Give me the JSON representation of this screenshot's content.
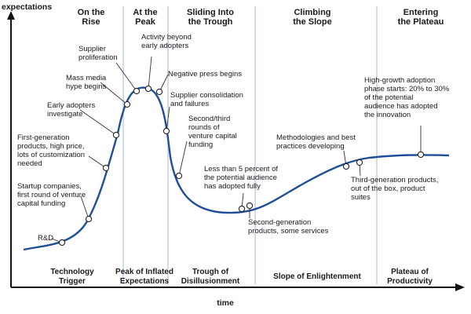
{
  "axes": {
    "y_label": "expectations",
    "x_label": "time"
  },
  "phases_top": [
    [
      "On the",
      "Rise"
    ],
    [
      "At the",
      "Peak"
    ],
    [
      "Sliding Into",
      "the Trough"
    ],
    [
      "Climbing",
      "the Slope"
    ],
    [
      "Entering",
      "the Plateau"
    ]
  ],
  "phases_bottom": [
    [
      "Technology",
      "Trigger"
    ],
    [
      "Peak of Inflated",
      "Expectations"
    ],
    [
      "Trough of",
      "Disillusionment"
    ],
    [
      "Slope of Enlightenment"
    ],
    [
      "Plateau of",
      "Productivity"
    ]
  ],
  "annotations": [
    [
      "R&D"
    ],
    [
      "Startup companies,",
      "first round of venture",
      "capital funding"
    ],
    [
      "First-generation",
      "products, high price,",
      "lots of customization",
      "needed"
    ],
    [
      "Early adopters",
      "investigate"
    ],
    [
      "Mass media",
      "hype begins"
    ],
    [
      "Supplier",
      "proliferation"
    ],
    [
      "Activity beyond",
      "early adopters"
    ],
    [
      "Negative press begins"
    ],
    [
      "Supplier consolidation",
      "and failures"
    ],
    [
      "Second/third",
      "rounds of",
      "venture capital",
      "funding"
    ],
    [
      "Less than 5 percent of",
      "the potential audience",
      "has adopted fully"
    ],
    [
      "Second-generation",
      "products, some services"
    ],
    [
      "Methodologies and best",
      "practices developing"
    ],
    [
      "Third-generation products,",
      "out of the box, product",
      "suites"
    ],
    [
      "High-growth adoption",
      "phase starts: 20% to 30%",
      "of the potential",
      "audience has adopted",
      "the innovation"
    ]
  ],
  "colors": {
    "curve": "#1f4e99",
    "divider": "#9cb8de",
    "axis": "#111111",
    "marker_fill": "#ffffff",
    "leader": "#333333"
  }
}
